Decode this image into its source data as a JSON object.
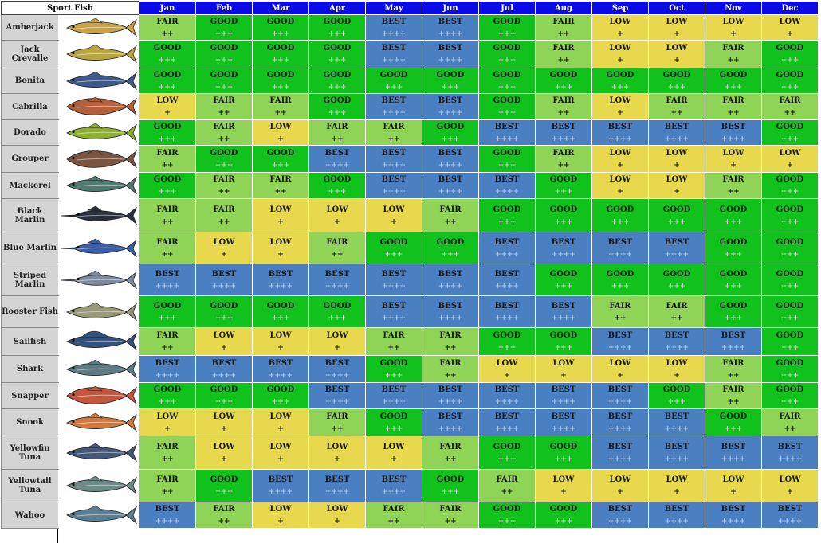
{
  "header": {
    "corner_label": "Sport Fish"
  },
  "months": [
    "Jan",
    "Feb",
    "Mar",
    "Apr",
    "May",
    "Jun",
    "Jul",
    "Aug",
    "Sep",
    "Oct",
    "Nov",
    "Dec"
  ],
  "rating_plus": {
    "LOW": "+",
    "FAIR": "++",
    "GOOD": "+++",
    "BEST": "++++"
  },
  "colors": {
    "LOW": "#e8d84e",
    "FAIR": "#8fd457",
    "GOOD": "#11c21c",
    "BEST": "#4a7fc2",
    "header": "#0a0ae6"
  },
  "fish": [
    {
      "name": "Amberjack",
      "icon": "amberjack-fish-icon",
      "color": "#c9a24a",
      "ratings": [
        "FAIR",
        "GOOD",
        "GOOD",
        "GOOD",
        "BEST",
        "BEST",
        "GOOD",
        "FAIR",
        "LOW",
        "LOW",
        "LOW",
        "LOW"
      ]
    },
    {
      "name": "Jack Crevalle",
      "icon": "jack-crevalle-fish-icon",
      "color": "#b9a640",
      "ratings": [
        "GOOD",
        "GOOD",
        "GOOD",
        "GOOD",
        "BEST",
        "BEST",
        "GOOD",
        "FAIR",
        "LOW",
        "LOW",
        "FAIR",
        "GOOD"
      ]
    },
    {
      "name": "Bonita",
      "icon": "bonita-fish-icon",
      "color": "#3d5a8a",
      "ratings": [
        "GOOD",
        "GOOD",
        "GOOD",
        "GOOD",
        "GOOD",
        "GOOD",
        "GOOD",
        "GOOD",
        "GOOD",
        "GOOD",
        "GOOD",
        "GOOD"
      ]
    },
    {
      "name": "Cabrilla",
      "icon": "cabrilla-fish-icon",
      "color": "#b5603a",
      "ratings": [
        "LOW",
        "FAIR",
        "FAIR",
        "GOOD",
        "BEST",
        "BEST",
        "GOOD",
        "FAIR",
        "LOW",
        "FAIR",
        "FAIR",
        "FAIR"
      ]
    },
    {
      "name": "Dorado",
      "icon": "dorado-fish-icon",
      "color": "#8fb02e",
      "ratings": [
        "GOOD",
        "FAIR",
        "LOW",
        "FAIR",
        "FAIR",
        "GOOD",
        "BEST",
        "BEST",
        "BEST",
        "BEST",
        "BEST",
        "GOOD"
      ]
    },
    {
      "name": "Grouper",
      "icon": "grouper-fish-icon",
      "color": "#7a5540",
      "ratings": [
        "FAIR",
        "GOOD",
        "GOOD",
        "BEST",
        "BEST",
        "BEST",
        "GOOD",
        "FAIR",
        "LOW",
        "LOW",
        "LOW",
        "LOW"
      ]
    },
    {
      "name": "Mackerel",
      "icon": "mackerel-fish-icon",
      "color": "#4f7a70",
      "ratings": [
        "GOOD",
        "FAIR",
        "FAIR",
        "GOOD",
        "BEST",
        "BEST",
        "BEST",
        "GOOD",
        "LOW",
        "LOW",
        "FAIR",
        "GOOD"
      ]
    },
    {
      "name": "Black Marlin",
      "icon": "black-marlin-fish-icon",
      "color": "#2a2f3e",
      "ratings": [
        "FAIR",
        "FAIR",
        "LOW",
        "LOW",
        "LOW",
        "FAIR",
        "GOOD",
        "GOOD",
        "GOOD",
        "GOOD",
        "GOOD",
        "GOOD"
      ]
    },
    {
      "name": "Blue Marlin",
      "icon": "blue-marlin-fish-icon",
      "color": "#3a5fa8",
      "ratings": [
        "FAIR",
        "LOW",
        "LOW",
        "FAIR",
        "GOOD",
        "GOOD",
        "BEST",
        "BEST",
        "BEST",
        "BEST",
        "GOOD",
        "GOOD"
      ]
    },
    {
      "name": "Striped Marlin",
      "icon": "striped-marlin-fish-icon",
      "color": "#7d8aa0",
      "ratings": [
        "BEST",
        "BEST",
        "BEST",
        "BEST",
        "BEST",
        "BEST",
        "BEST",
        "GOOD",
        "GOOD",
        "GOOD",
        "GOOD",
        "GOOD"
      ]
    },
    {
      "name": "Rooster Fish",
      "icon": "rooster-fish-icon",
      "color": "#9a9a7a",
      "ratings": [
        "GOOD",
        "GOOD",
        "GOOD",
        "GOOD",
        "BEST",
        "BEST",
        "BEST",
        "BEST",
        "FAIR",
        "FAIR",
        "GOOD",
        "GOOD"
      ]
    },
    {
      "name": "Sailfish",
      "icon": "sailfish-fish-icon",
      "color": "#34507c",
      "ratings": [
        "FAIR",
        "LOW",
        "LOW",
        "LOW",
        "FAIR",
        "FAIR",
        "GOOD",
        "GOOD",
        "BEST",
        "BEST",
        "BEST",
        "GOOD"
      ]
    },
    {
      "name": "Shark",
      "icon": "shark-fish-icon",
      "color": "#5e7a82",
      "ratings": [
        "BEST",
        "BEST",
        "BEST",
        "BEST",
        "GOOD",
        "FAIR",
        "LOW",
        "LOW",
        "LOW",
        "LOW",
        "FAIR",
        "GOOD"
      ]
    },
    {
      "name": "Snapper",
      "icon": "snapper-fish-icon",
      "color": "#c4553e",
      "ratings": [
        "GOOD",
        "GOOD",
        "GOOD",
        "BEST",
        "BEST",
        "BEST",
        "BEST",
        "BEST",
        "BEST",
        "GOOD",
        "FAIR",
        "GOOD"
      ]
    },
    {
      "name": "Snook",
      "icon": "snook-fish-icon",
      "color": "#d07a40",
      "ratings": [
        "LOW",
        "LOW",
        "LOW",
        "FAIR",
        "GOOD",
        "BEST",
        "BEST",
        "BEST",
        "BEST",
        "BEST",
        "GOOD",
        "FAIR"
      ]
    },
    {
      "name": "Yellowfin Tuna",
      "icon": "yellowfin-tuna-fish-icon",
      "color": "#44587a",
      "ratings": [
        "FAIR",
        "LOW",
        "LOW",
        "LOW",
        "LOW",
        "FAIR",
        "GOOD",
        "GOOD",
        "BEST",
        "BEST",
        "BEST",
        "BEST"
      ]
    },
    {
      "name": "Yellowtail Tuna",
      "icon": "yellowtail-tuna-fish-icon",
      "color": "#6e8a86",
      "ratings": [
        "FAIR",
        "GOOD",
        "BEST",
        "BEST",
        "BEST",
        "GOOD",
        "FAIR",
        "LOW",
        "LOW",
        "LOW",
        "LOW",
        "LOW"
      ]
    },
    {
      "name": "Wahoo",
      "icon": "wahoo-fish-icon",
      "color": "#5a7e92",
      "ratings": [
        "BEST",
        "FAIR",
        "LOW",
        "LOW",
        "FAIR",
        "FAIR",
        "GOOD",
        "GOOD",
        "BEST",
        "BEST",
        "BEST",
        "BEST"
      ]
    }
  ]
}
